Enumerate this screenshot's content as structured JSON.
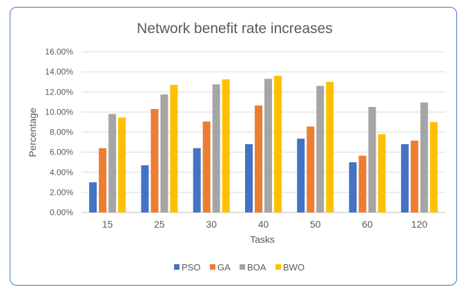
{
  "chart_data": {
    "type": "bar",
    "title": "Network benefit rate increases",
    "xlabel": "Tasks",
    "ylabel": "Percentage",
    "categories": [
      "15",
      "25",
      "30",
      "40",
      "50",
      "60",
      "120"
    ],
    "ylim": [
      0,
      16
    ],
    "yticks": [
      "0.00%",
      "2.00%",
      "4.00%",
      "6.00%",
      "8.00%",
      "10.00%",
      "12.00%",
      "14.00%",
      "16.00%"
    ],
    "grid": true,
    "legend_position": "bottom",
    "series": [
      {
        "name": "PSO",
        "color": "#4472C4",
        "values": [
          3.0,
          4.7,
          6.4,
          6.8,
          7.35,
          5.0,
          6.8
        ]
      },
      {
        "name": "GA",
        "color": "#ED7D31",
        "values": [
          6.4,
          10.3,
          9.05,
          10.65,
          8.55,
          5.65,
          7.15
        ]
      },
      {
        "name": "BOA",
        "color": "#A5A5A5",
        "values": [
          9.8,
          11.75,
          12.75,
          13.3,
          12.6,
          10.5,
          10.95
        ]
      },
      {
        "name": "BWO",
        "color": "#FFC000",
        "values": [
          9.45,
          12.7,
          13.25,
          13.6,
          13.0,
          7.8,
          9.0
        ]
      }
    ]
  }
}
